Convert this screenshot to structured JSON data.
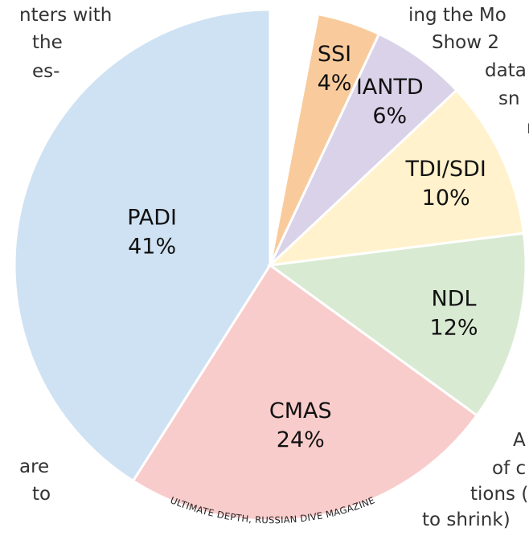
{
  "chart_data": {
    "type": "pie",
    "categories": [
      "PADI",
      "CMAS",
      "NDL",
      "TDI/SDI",
      "IANTD",
      "SSI"
    ],
    "values": [
      41,
      24,
      12,
      10,
      6,
      4
    ],
    "value_labels": [
      "41%",
      "24%",
      "12%",
      "10%",
      "6%",
      "4%"
    ],
    "colors": [
      "#cfe2f3",
      "#f9cccc",
      "#d9ead3",
      "#fff2cc",
      "#d9d2e9",
      "#f9cb9c"
    ],
    "credit": "ULTIMATE DEPTH, RUSSIAN DIVE MAGAZINE"
  },
  "background_text": [
    "nters with",
    "the",
    "es-",
    "ing the Mo",
    "Show 2",
    "data",
    "sn",
    "n",
    "are",
    "to",
    "A",
    "of c",
    "tions (",
    "to shrink)"
  ]
}
